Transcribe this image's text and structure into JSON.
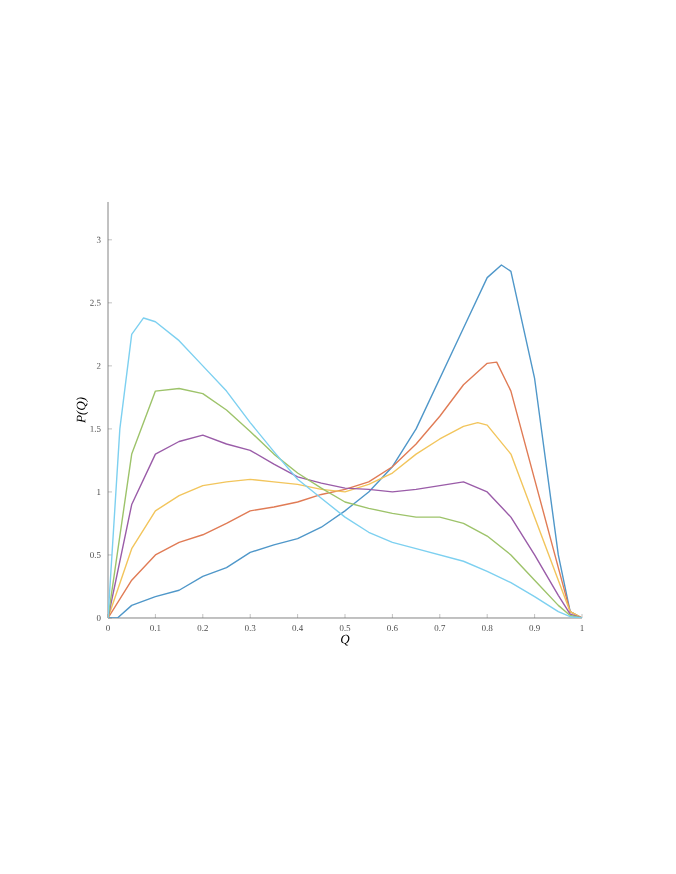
{
  "chart_data": {
    "type": "line",
    "xlabel": "Q",
    "ylabel": "P(Q)",
    "xlim": [
      0,
      1
    ],
    "ylim": [
      0,
      3.3
    ],
    "xticks": [
      0,
      0.1,
      0.2,
      0.3,
      0.4,
      0.5,
      0.6,
      0.7,
      0.8,
      0.9,
      1
    ],
    "yticks": [
      0,
      0.5,
      1,
      1.5,
      2,
      2.5,
      3
    ],
    "grid": false,
    "marker": "none",
    "line_style": "solid",
    "series": [
      {
        "color": "#4f97c9",
        "x": [
          0,
          0.02,
          0.05,
          0.1,
          0.15,
          0.2,
          0.25,
          0.3,
          0.35,
          0.4,
          0.45,
          0.5,
          0.55,
          0.6,
          0.65,
          0.7,
          0.75,
          0.8,
          0.83,
          0.85,
          0.9,
          0.95,
          0.975,
          1
        ],
        "values": [
          0,
          0,
          0.1,
          0.17,
          0.22,
          0.33,
          0.4,
          0.52,
          0.58,
          0.63,
          0.72,
          0.85,
          1.0,
          1.2,
          1.5,
          1.9,
          2.3,
          2.7,
          2.8,
          2.75,
          1.9,
          0.5,
          0.05,
          0
        ]
      },
      {
        "color": "#e07b55",
        "x": [
          0,
          0.05,
          0.1,
          0.15,
          0.2,
          0.25,
          0.3,
          0.35,
          0.4,
          0.45,
          0.5,
          0.55,
          0.6,
          0.65,
          0.7,
          0.75,
          0.8,
          0.82,
          0.85,
          0.9,
          0.95,
          0.975,
          1
        ],
        "values": [
          0,
          0.3,
          0.5,
          0.6,
          0.66,
          0.75,
          0.85,
          0.88,
          0.92,
          0.98,
          1.02,
          1.08,
          1.2,
          1.38,
          1.6,
          1.85,
          2.02,
          2.03,
          1.8,
          1.1,
          0.4,
          0.05,
          0
        ]
      },
      {
        "color": "#f2c55c",
        "x": [
          0,
          0.05,
          0.1,
          0.15,
          0.2,
          0.25,
          0.3,
          0.35,
          0.4,
          0.45,
          0.5,
          0.55,
          0.6,
          0.65,
          0.7,
          0.75,
          0.78,
          0.8,
          0.85,
          0.9,
          0.95,
          0.975,
          1
        ],
        "values": [
          0,
          0.55,
          0.85,
          0.97,
          1.05,
          1.08,
          1.1,
          1.08,
          1.06,
          1.02,
          1.0,
          1.06,
          1.15,
          1.3,
          1.42,
          1.52,
          1.55,
          1.53,
          1.3,
          0.8,
          0.3,
          0.05,
          0
        ]
      },
      {
        "color": "#9a5ca8",
        "x": [
          0,
          0.05,
          0.1,
          0.15,
          0.2,
          0.25,
          0.3,
          0.35,
          0.4,
          0.45,
          0.5,
          0.55,
          0.6,
          0.65,
          0.7,
          0.75,
          0.8,
          0.85,
          0.9,
          0.95,
          0.975,
          1
        ],
        "values": [
          0,
          0.9,
          1.3,
          1.4,
          1.45,
          1.38,
          1.33,
          1.22,
          1.12,
          1.07,
          1.03,
          1.02,
          1.0,
          1.02,
          1.05,
          1.08,
          1.0,
          0.8,
          0.5,
          0.18,
          0.03,
          0
        ]
      },
      {
        "color": "#9dc36a",
        "x": [
          0,
          0.05,
          0.1,
          0.15,
          0.2,
          0.25,
          0.3,
          0.35,
          0.4,
          0.45,
          0.5,
          0.55,
          0.6,
          0.65,
          0.7,
          0.75,
          0.8,
          0.85,
          0.9,
          0.95,
          0.975,
          1
        ],
        "values": [
          0,
          1.3,
          1.8,
          1.82,
          1.78,
          1.65,
          1.48,
          1.3,
          1.15,
          1.03,
          0.92,
          0.87,
          0.83,
          0.8,
          0.8,
          0.75,
          0.65,
          0.5,
          0.3,
          0.1,
          0.02,
          0
        ]
      },
      {
        "color": "#7dd0f0",
        "x": [
          0,
          0.025,
          0.05,
          0.075,
          0.1,
          0.15,
          0.2,
          0.25,
          0.3,
          0.35,
          0.4,
          0.45,
          0.5,
          0.55,
          0.6,
          0.65,
          0.7,
          0.75,
          0.8,
          0.85,
          0.9,
          0.95,
          0.975,
          1
        ],
        "values": [
          0,
          1.5,
          2.25,
          2.38,
          2.35,
          2.2,
          2.0,
          1.8,
          1.55,
          1.32,
          1.1,
          0.95,
          0.8,
          0.68,
          0.6,
          0.55,
          0.5,
          0.45,
          0.37,
          0.28,
          0.17,
          0.05,
          0.01,
          0
        ]
      }
    ]
  }
}
